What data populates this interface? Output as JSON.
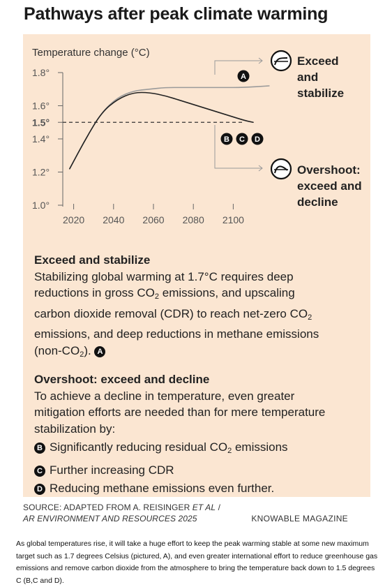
{
  "title": "Pathways after peak climate warming",
  "chart_data": {
    "type": "line",
    "ylabel": "Temperature change (°C)",
    "xlim": [
      2010,
      2110
    ],
    "ylim": [
      1.0,
      1.8
    ],
    "x_ticks": [
      2020,
      2040,
      2060,
      2080,
      2100
    ],
    "y_ticks": [
      {
        "value": 1.0,
        "label": "1.0°"
      },
      {
        "value": 1.2,
        "label": "1.2°"
      },
      {
        "value": 1.4,
        "label": "1.4°"
      },
      {
        "value": 1.5,
        "label": "1.5°"
      },
      {
        "value": 1.6,
        "label": "1.6°"
      },
      {
        "value": 1.8,
        "label": "1.8°"
      }
    ],
    "reference_line": {
      "value": 1.5,
      "style": "dashed"
    },
    "series": [
      {
        "badge": "A",
        "color": "#9a9a9a",
        "x": [
          2018,
          2026,
          2034,
          2042,
          2050,
          2058,
          2066,
          2075,
          2085,
          2095,
          2105,
          2118
        ],
        "y": [
          1.22,
          1.4,
          1.56,
          1.65,
          1.69,
          1.7,
          1.71,
          1.71,
          1.71,
          1.71,
          1.71,
          1.72
        ]
      },
      {
        "badge": "B C D",
        "color": "#222222",
        "x": [
          2018,
          2026,
          2034,
          2042,
          2050,
          2058,
          2066,
          2074,
          2082,
          2090,
          2098,
          2106,
          2110
        ],
        "y": [
          1.22,
          1.4,
          1.56,
          1.64,
          1.68,
          1.68,
          1.66,
          1.63,
          1.6,
          1.57,
          1.54,
          1.51,
          1.5
        ]
      }
    ],
    "annotations": [
      {
        "badge": "A",
        "label_lines": [
          "Exceed",
          "and",
          "stabilize"
        ]
      },
      {
        "badge": "B C D",
        "label_lines": [
          "Overshoot:",
          "exceed and",
          "decline"
        ]
      }
    ],
    "colors": {
      "panel_background": "#fbe6d2",
      "series_a": "#9a9a9a",
      "series_bcd": "#222222",
      "connector": "#9a9a9a"
    }
  },
  "text": {
    "section1_heading": "Exceed and stabilize",
    "section1_line1": "Stabilizing global warming at 1.7°C requires deep",
    "section1_line2a": "reductions in gross CO",
    "section1_line2b": " emissions, and upscaling",
    "section1_line3a": "carbon dioxide removal (CDR) to reach net-zero CO",
    "section1_line4": "emissions, and deep reductions in methane emissions",
    "section1_line5a": "(non-CO",
    "section1_line5b": ").",
    "sub2": "2",
    "section2_heading": "Overshoot: exceed and decline",
    "section2_line1": "To achieve a decline in temperature, even greater",
    "section2_line2": "mitigation efforts are needed than for mere temperature",
    "section2_line3": "stabilization by:",
    "items": [
      {
        "badge": "B",
        "text_a": "Significantly reducing residual CO",
        "text_b": " emissions"
      },
      {
        "badge": "C",
        "text_a": "Further increasing CDR",
        "text_b": ""
      },
      {
        "badge": "D",
        "text_a": "Reducing methane emissions even further.",
        "text_b": ""
      }
    ]
  },
  "source_line1a": "SOURCE: ADAPTED FROM A. REISINGER ",
  "source_line1b": "ET AL",
  "source_line1c": " /",
  "source_line2": "AR ENVIRONMENT AND RESOURCES 2025",
  "brand": "KNOWABLE MAGAZINE",
  "caption": "As global temperatures rise, it will take a huge effort to keep the peak warming stable at some new maximum target such as 1.7 degrees Celsius (pictured, A), and even greater international effort to reduce greenhouse gas emissions and remove carbon dioxide from the atmosphere to bring the temperature back down to 1.5 degrees C (B,C and D)."
}
